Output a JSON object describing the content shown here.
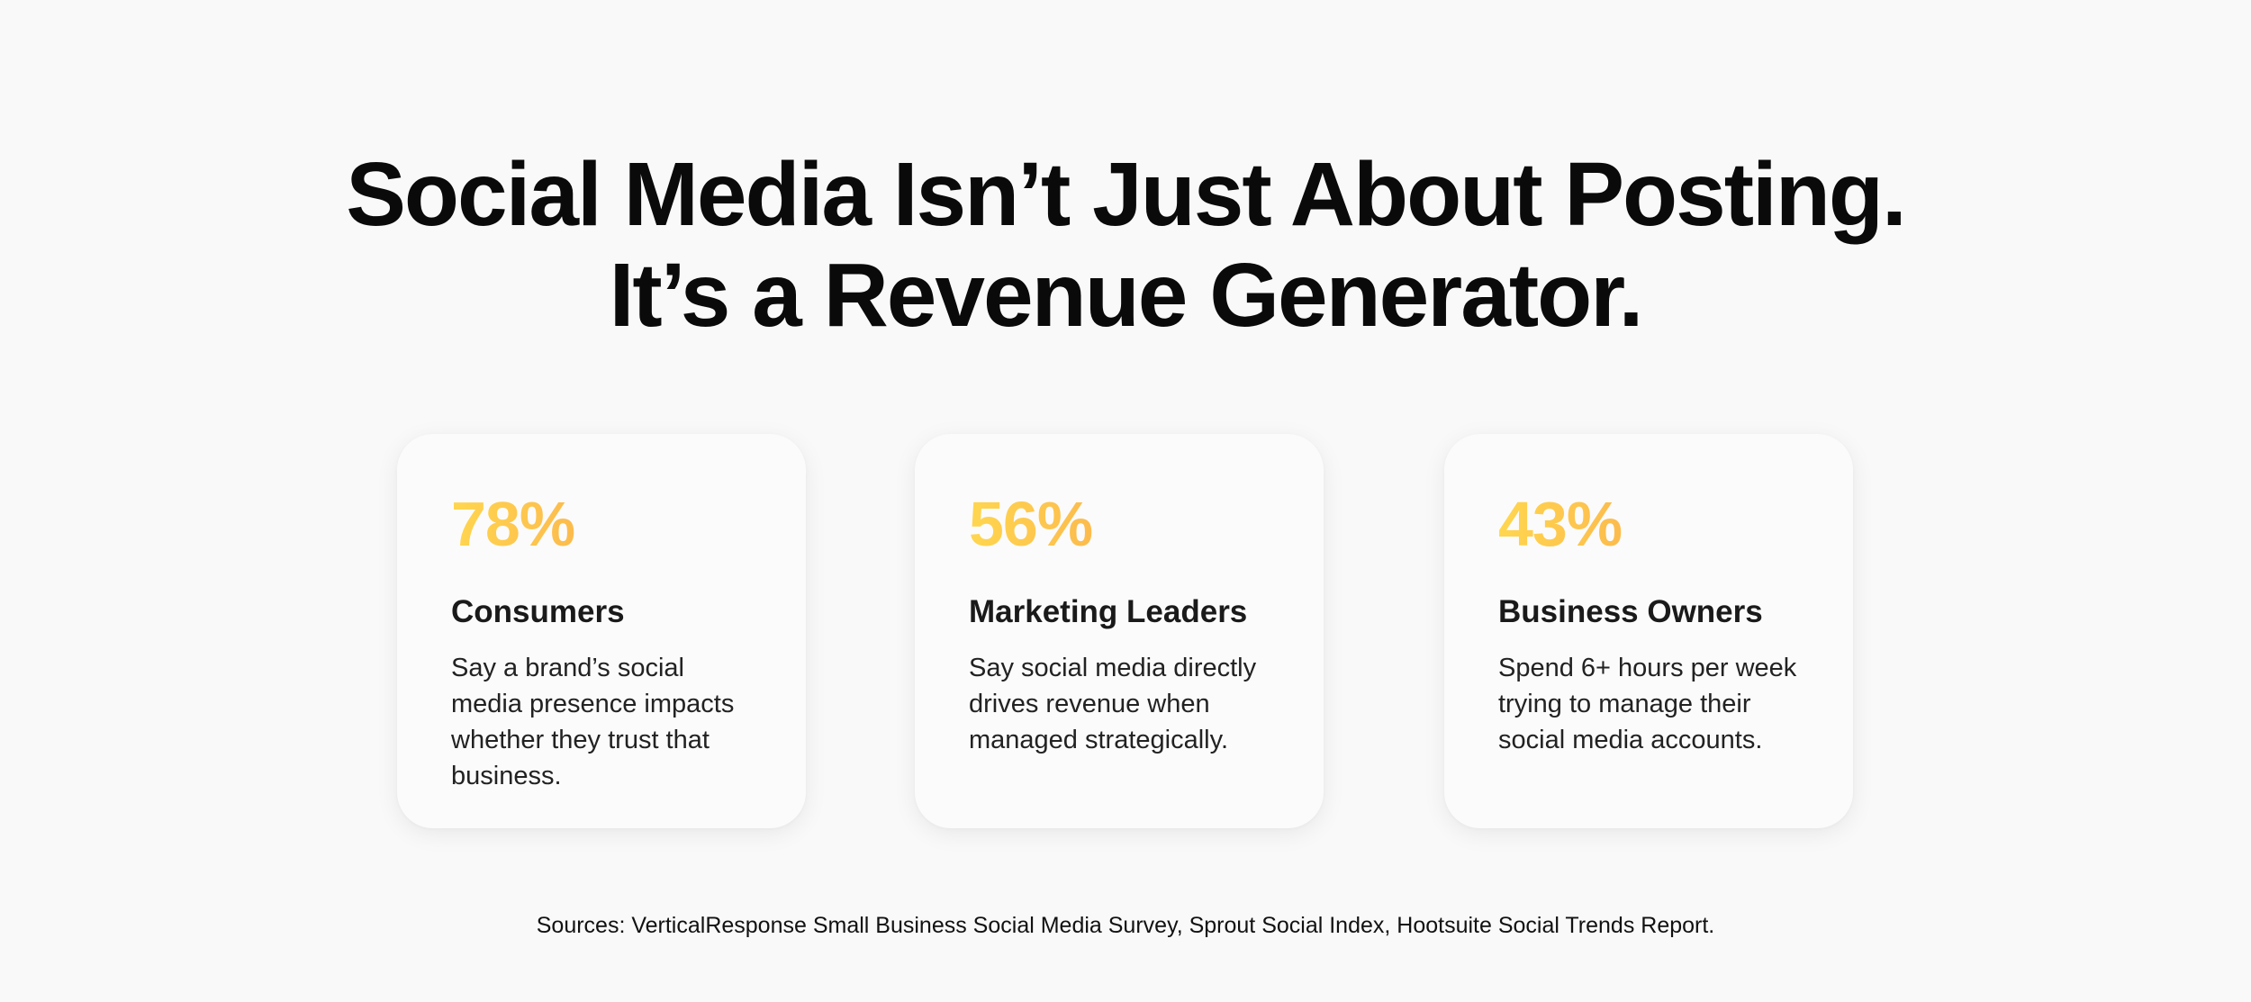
{
  "headline": {
    "line1": "Social Media Isn’t Just About Posting.",
    "line2": "It’s a Revenue Generator."
  },
  "stats": [
    {
      "value": "78%",
      "title": "Consumers",
      "text": "Say a brand’s social media presence impacts whether they trust that business."
    },
    {
      "value": "56%",
      "title": "Marketing Leaders",
      "text": "Say social media directly drives revenue when managed strategically."
    },
    {
      "value": "43%",
      "title": "Business Owners",
      "text": "Spend 6+ hours per week trying to manage their social media accounts."
    }
  ],
  "colors": {
    "background": "#f9f9f9",
    "card": "#fbfbfb",
    "stat_gradient_start": "#ffd64f",
    "stat_gradient_end": "#f6894a",
    "text": "#111111"
  },
  "sources": "Sources: VerticalResponse Small Business Social Media Survey, Sprout Social Index, Hootsuite Social Trends Report."
}
